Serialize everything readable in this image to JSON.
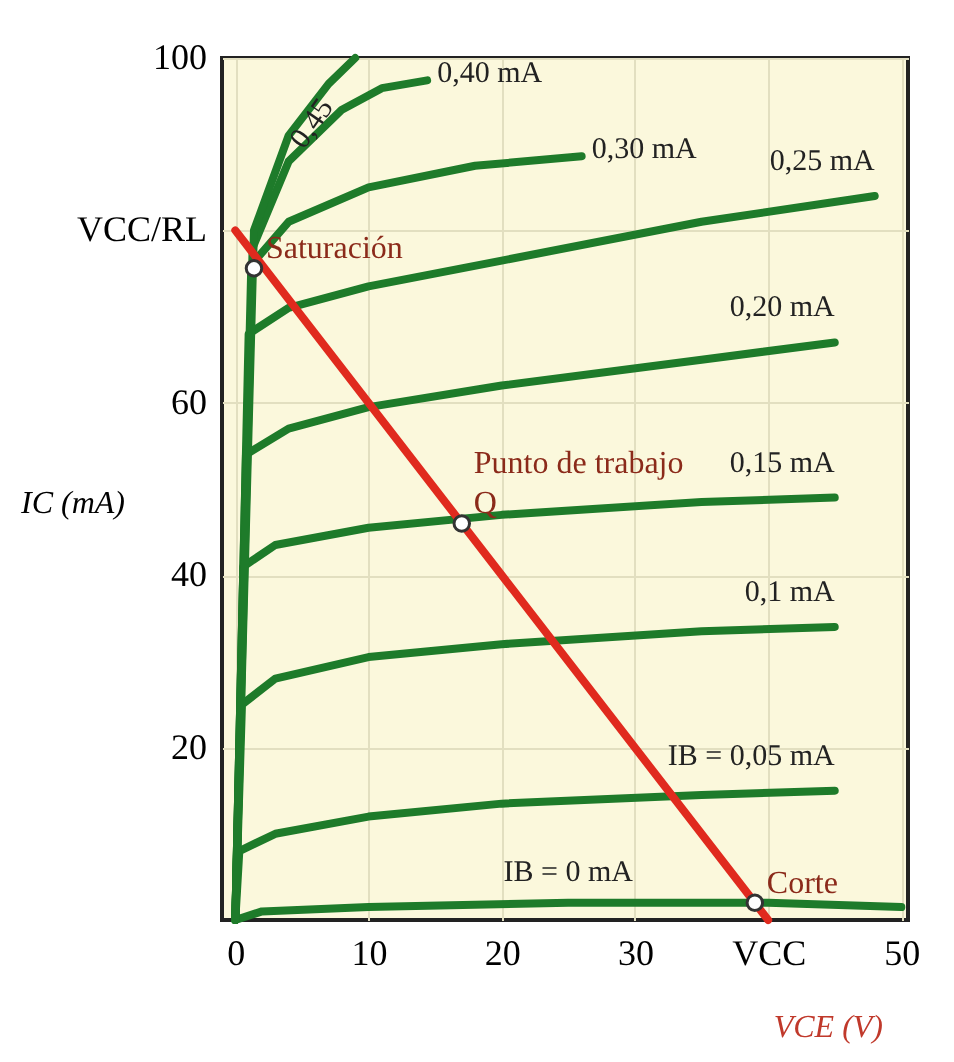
{
  "chart_data": {
    "type": "line",
    "xlabel": "VCE (V)",
    "ylabel": "IC (mA)",
    "xlim": [
      -1,
      50.5
    ],
    "ylim": [
      0,
      100
    ],
    "xticks": [
      0,
      10,
      20,
      30,
      {
        "value": 40,
        "label": "VCC"
      },
      50
    ],
    "yticks": [
      20,
      40,
      60,
      {
        "value": 80,
        "label": "VCC/RL"
      },
      100
    ],
    "grid": true,
    "legend": false,
    "marker": "none",
    "line_style": "solid",
    "series": [
      {
        "name": "IB = 0 mA",
        "color": "#1e7b2a",
        "x": [
          0,
          2,
          10,
          25,
          40,
          50
        ],
        "values": [
          0,
          1,
          1.5,
          2,
          2,
          1.5
        ]
      },
      {
        "name": "IB = 0,05 mA",
        "color": "#1e7b2a",
        "x": [
          0,
          0.3,
          3,
          10,
          20,
          35,
          45
        ],
        "values": [
          0,
          8,
          10,
          12,
          13.5,
          14.5,
          15
        ]
      },
      {
        "name": "0,1 mA",
        "color": "#1e7b2a",
        "x": [
          0,
          0.5,
          3,
          10,
          20,
          35,
          45
        ],
        "values": [
          0,
          25,
          28,
          30.5,
          32,
          33.5,
          34
        ]
      },
      {
        "name": "0,15 mA",
        "color": "#1e7b2a",
        "x": [
          0,
          0.6,
          3,
          10,
          20,
          35,
          45
        ],
        "values": [
          0,
          41,
          43.5,
          45.5,
          47,
          48.5,
          49
        ]
      },
      {
        "name": "0,20 mA",
        "color": "#1e7b2a",
        "x": [
          0,
          0.8,
          4,
          10,
          20,
          35,
          45
        ],
        "values": [
          0,
          54,
          57,
          59.5,
          62,
          65,
          67
        ]
      },
      {
        "name": "0,25 mA",
        "color": "#1e7b2a",
        "x": [
          0,
          1,
          4,
          10,
          20,
          35,
          48
        ],
        "values": [
          0,
          68,
          71,
          73.5,
          76.5,
          81,
          84
        ]
      },
      {
        "name": "0,30 mA",
        "color": "#1e7b2a",
        "x": [
          0,
          1.2,
          4,
          10,
          18,
          26
        ],
        "values": [
          0,
          76,
          81,
          85,
          87.5,
          88.6
        ]
      },
      {
        "name": "0,40 mA",
        "color": "#1e7b2a",
        "x": [
          0,
          1.3,
          4,
          8,
          11,
          14.4
        ],
        "values": [
          0,
          78,
          88,
          94,
          96.5,
          97.4
        ]
      },
      {
        "name": "0,45",
        "color": "#1e7b2a",
        "x": [
          0,
          1.4,
          4,
          7,
          9
        ],
        "values": [
          0,
          80,
          91,
          97,
          100
        ]
      },
      {
        "color": "#e02a1e",
        "x": [
          0,
          40
        ],
        "values": [
          80,
          0
        ]
      }
    ],
    "annotations": [
      {
        "text": "Saturación",
        "x": 1.4,
        "y": 75.6
      },
      {
        "text": "Q",
        "x": 17,
        "y": 46
      },
      {
        "text": "Punto de trabajo",
        "x": 17,
        "y": 46
      },
      {
        "text": "Corte",
        "x": 39,
        "y": 2
      }
    ]
  }
}
